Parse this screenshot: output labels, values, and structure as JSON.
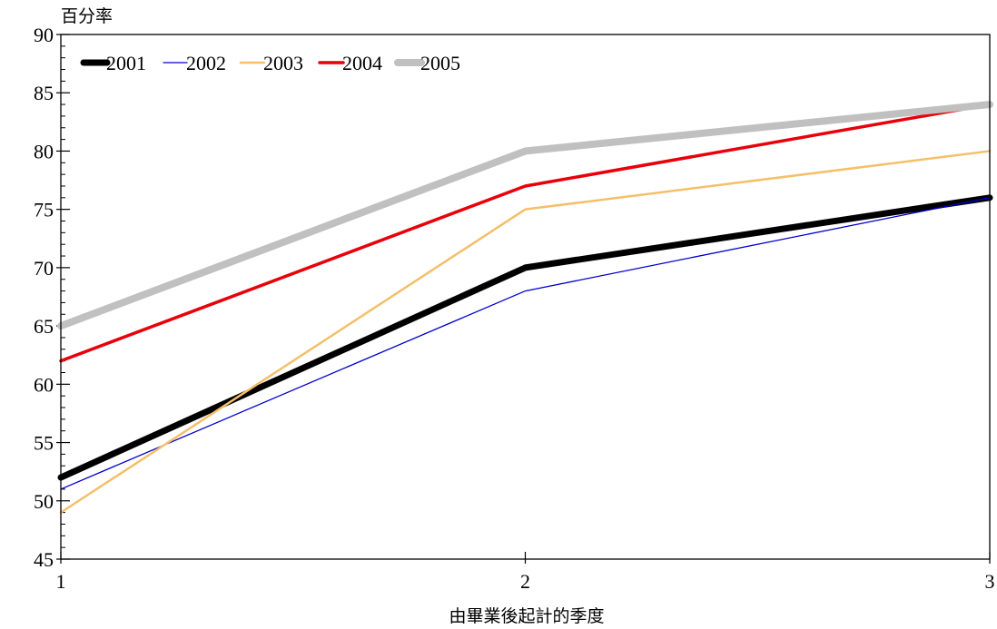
{
  "chart_data": {
    "type": "line",
    "title": "",
    "ylabel": "百分率",
    "xlabel": "由畢業後起計的季度",
    "x": [
      1,
      2,
      3
    ],
    "xticks": [
      "1",
      "2",
      "3"
    ],
    "ylim": [
      45,
      90
    ],
    "yticks": [
      "45",
      "50",
      "55",
      "60",
      "65",
      "70",
      "75",
      "80",
      "85",
      "90"
    ],
    "legend_position": "top-left",
    "grid": false,
    "series": [
      {
        "name": "2001",
        "values": [
          52,
          70,
          76
        ],
        "color": "#000000"
      },
      {
        "name": "2002",
        "values": [
          51,
          68,
          76
        ],
        "color": "#0000cc"
      },
      {
        "name": "2003",
        "values": [
          49,
          75,
          80
        ],
        "color": "#f5bf6a"
      },
      {
        "name": "2004",
        "values": [
          62,
          77,
          84
        ],
        "color": "#e8000b"
      },
      {
        "name": "2005",
        "values": [
          65,
          80,
          84
        ],
        "color": "#c0c0c0"
      }
    ]
  }
}
